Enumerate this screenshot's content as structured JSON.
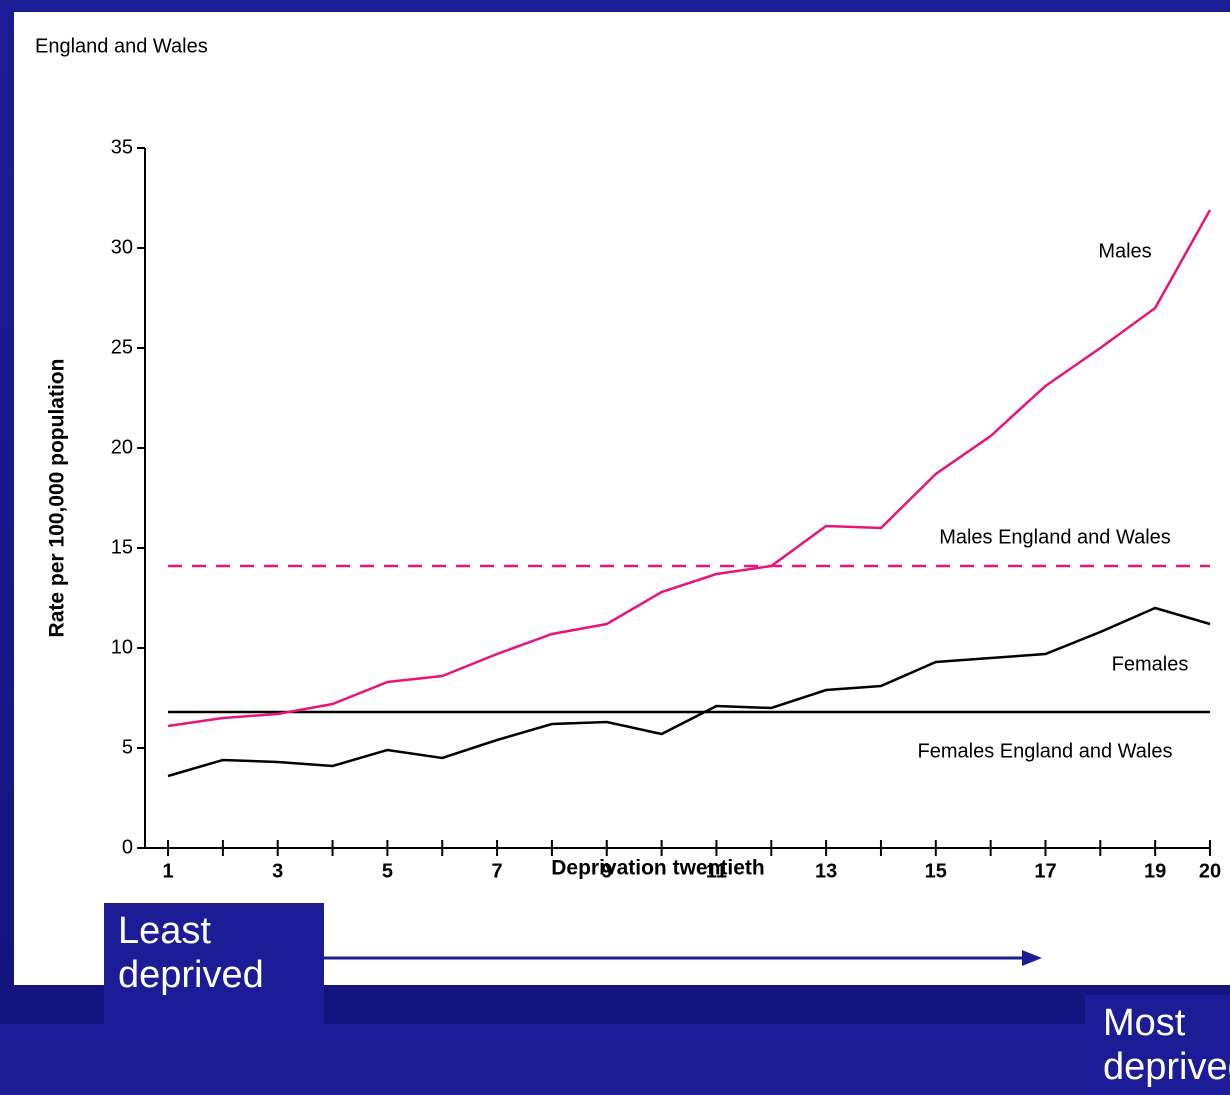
{
  "chart_data": {
    "type": "line",
    "title": "England and Wales",
    "y_label": "Rate per 100,000 population",
    "x_label": "Deprivation twentieth",
    "x": [
      1,
      2,
      3,
      4,
      5,
      6,
      7,
      8,
      9,
      10,
      11,
      12,
      13,
      14,
      15,
      16,
      17,
      18,
      19,
      20
    ],
    "series": [
      {
        "name": "Males",
        "color": "#e8147a",
        "values": [
          6.1,
          6.5,
          6.7,
          7.2,
          8.3,
          8.6,
          9.7,
          10.7,
          11.2,
          12.8,
          13.7,
          14.1,
          16.1,
          16.0,
          18.7,
          20.6,
          23.1,
          25.0,
          27.0,
          31.9
        ]
      },
      {
        "name": "Females",
        "color": "#000000",
        "values": [
          3.6,
          4.4,
          4.3,
          4.1,
          4.9,
          4.5,
          5.4,
          6.2,
          6.3,
          5.7,
          7.1,
          7.0,
          7.9,
          8.1,
          9.3,
          9.5,
          9.7,
          10.8,
          12.0,
          11.2
        ]
      }
    ],
    "reference_lines": [
      {
        "name": "Males England and Wales",
        "value": 14.1,
        "color": "#e8147a",
        "dashed": true
      },
      {
        "name": "Females England and Wales",
        "value": 6.8,
        "color": "#000000",
        "dashed": false
      }
    ],
    "xlim": [
      0.58,
      20
    ],
    "ylim": [
      0,
      35
    ],
    "xticks": [
      1,
      3,
      5,
      7,
      9,
      11,
      13,
      15,
      17,
      19,
      20
    ],
    "xminor": [
      2,
      4,
      6,
      8,
      10,
      12,
      14,
      16,
      18
    ],
    "yticks": [
      0,
      5,
      10,
      15,
      20,
      25,
      30,
      35
    ],
    "annotations": {
      "left": "Least deprived",
      "right": "Most deprived"
    }
  }
}
